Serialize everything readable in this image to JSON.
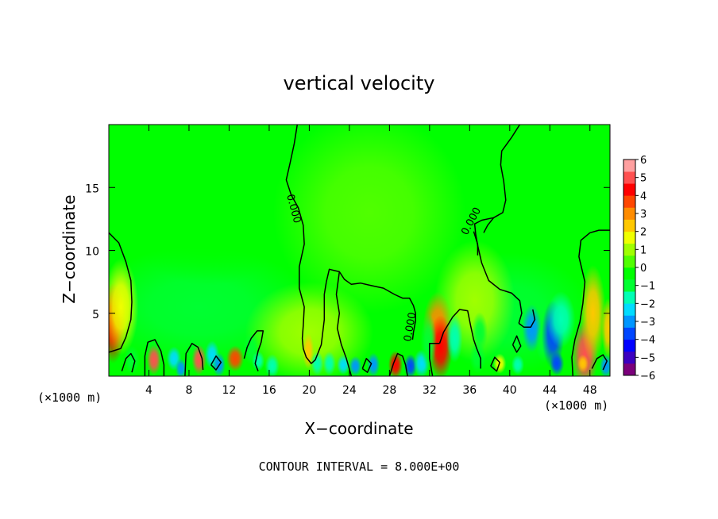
{
  "chart_data": {
    "type": "heatmap",
    "title": "vertical velocity",
    "xlabel": "X−coordinate",
    "ylabel": "Z−coordinate",
    "x_unit_left": "(×1000 m)",
    "x_unit_right": "(×1000 m)",
    "footer": "CONTOUR INTERVAL = 8.000E+00",
    "xlim": [
      0,
      50
    ],
    "ylim": [
      0,
      20
    ],
    "x_ticks": [
      4,
      8,
      12,
      16,
      20,
      24,
      28,
      32,
      36,
      40,
      44,
      48
    ],
    "x_tick_labels": [
      "4",
      "8",
      "12",
      "16",
      "20",
      "24",
      "28",
      "32",
      "36",
      "40",
      "44",
      "48"
    ],
    "y_ticks": [
      5,
      10,
      15
    ],
    "y_tick_labels": [
      "5",
      "10",
      "15"
    ],
    "colorbar": {
      "range": [
        -6,
        6
      ],
      "ticks": [
        6,
        5,
        4,
        3,
        2,
        1,
        0,
        -1,
        -2,
        -3,
        -4,
        -5,
        -6
      ],
      "tick_labels": [
        "6",
        "5",
        "4",
        "3",
        "2",
        "1",
        "0",
        "−1",
        "−2",
        "−3",
        "−4",
        "−5",
        "−6"
      ],
      "colors": [
        "#7b007b",
        "#3c00c0",
        "#0000ff",
        "#0046ff",
        "#0096ff",
        "#00dcff",
        "#00ffb4",
        "#00ff32",
        "#00ff00",
        "#50ff00",
        "#a0ff00",
        "#f0ff00",
        "#ffc800",
        "#ff8c00",
        "#ff4600",
        "#ff0000",
        "#ff5050",
        "#ffa0a0"
      ]
    },
    "contour_labels": [
      "0.000",
      "0.000",
      "0.000"
    ],
    "contours": [
      [
        [
          0,
          11.4
        ],
        [
          1.0,
          10.6
        ],
        [
          1.7,
          9.1
        ],
        [
          2.2,
          7.6
        ],
        [
          2.3,
          5.9
        ],
        [
          2.2,
          4.5
        ],
        [
          1.7,
          3.1
        ],
        [
          1.2,
          2.2
        ],
        [
          0,
          1.9
        ]
      ],
      [
        [
          18.8,
          20
        ],
        [
          18.5,
          18.5
        ],
        [
          18.1,
          17.0
        ],
        [
          17.7,
          15.6
        ],
        [
          18.2,
          14.4
        ],
        [
          18.9,
          13.4
        ],
        [
          19.4,
          12.0
        ],
        [
          19.5,
          10.5
        ],
        [
          19.0,
          8.7
        ],
        [
          19.0,
          7.0
        ],
        [
          19.5,
          5.5
        ],
        [
          19.4,
          4.0
        ],
        [
          19.3,
          3.0
        ],
        [
          19.4,
          2.2
        ],
        [
          19.7,
          1.5
        ],
        [
          20.2,
          1.0
        ],
        [
          20.6,
          1.3
        ],
        [
          21.2,
          2.5
        ],
        [
          21.5,
          4.5
        ],
        [
          21.5,
          6.5
        ],
        [
          21.7,
          7.5
        ]
      ],
      [
        [
          21.7,
          7.5
        ],
        [
          22.0,
          8.5
        ],
        [
          22.5,
          8.4
        ],
        [
          23.0,
          8.3
        ],
        [
          23.5,
          7.7
        ],
        [
          24.2,
          7.3
        ],
        [
          25.1,
          7.4
        ],
        [
          26.2,
          7.2
        ],
        [
          27.4,
          7.0
        ],
        [
          28.5,
          6.5
        ],
        [
          29.3,
          6.2
        ],
        [
          30.0,
          6.2
        ],
        [
          30.4,
          5.6
        ],
        [
          30.6,
          5.0
        ],
        [
          30.6,
          4.4
        ],
        [
          30.4,
          3.5
        ],
        [
          30.3,
          2.9
        ]
      ],
      [
        [
          23.0,
          8.3
        ],
        [
          22.7,
          6.5
        ],
        [
          23.0,
          5.0
        ],
        [
          22.8,
          3.8
        ],
        [
          23.2,
          2.5
        ],
        [
          23.7,
          1.4
        ],
        [
          24.2,
          0
        ]
      ],
      [
        [
          28.0,
          0
        ],
        [
          28.4,
          1.0
        ],
        [
          28.8,
          1.8
        ],
        [
          29.3,
          1.6
        ],
        [
          29.6,
          0.9
        ],
        [
          29.8,
          0
        ]
      ],
      [
        [
          41.0,
          20
        ],
        [
          40.2,
          19.0
        ],
        [
          39.2,
          17.9
        ],
        [
          39.1,
          16.8
        ],
        [
          39.4,
          15.5
        ],
        [
          39.6,
          14.0
        ],
        [
          39.3,
          13.0
        ],
        [
          38.4,
          12.6
        ],
        [
          37.2,
          12.4
        ],
        [
          36.5,
          12.1
        ],
        [
          36.6,
          11.3
        ],
        [
          36.8,
          10.4
        ],
        [
          37.2,
          9.0
        ],
        [
          37.9,
          7.6
        ],
        [
          39.0,
          6.9
        ],
        [
          40.2,
          6.6
        ],
        [
          41.0,
          6.0
        ],
        [
          41.2,
          5.0
        ],
        [
          40.9,
          4.2
        ]
      ],
      [
        [
          36.4,
          11.5
        ],
        [
          36.8,
          10.5
        ],
        [
          36.8,
          9.6
        ]
      ],
      [
        [
          38.4,
          12.6
        ],
        [
          37.8,
          12.0
        ],
        [
          37.4,
          11.4
        ]
      ],
      [
        [
          40.9,
          4.2
        ],
        [
          41.4,
          3.9
        ],
        [
          42.1,
          3.9
        ],
        [
          42.5,
          4.5
        ],
        [
          42.3,
          5.3
        ]
      ],
      [
        [
          33.0,
          2.6
        ],
        [
          33.4,
          3.5
        ],
        [
          34.3,
          4.7
        ],
        [
          35.0,
          5.3
        ],
        [
          35.8,
          5.2
        ],
        [
          36.1,
          4.0
        ],
        [
          36.4,
          2.9
        ],
        [
          36.7,
          2.2
        ],
        [
          37.1,
          1.4
        ],
        [
          37.1,
          0.6
        ]
      ],
      [
        [
          32.3,
          0
        ],
        [
          32.0,
          1.4
        ],
        [
          32.0,
          2.6
        ],
        [
          33.0,
          2.6
        ]
      ],
      [
        [
          13.5,
          1.4
        ],
        [
          13.8,
          2.3
        ],
        [
          14.2,
          3.0
        ],
        [
          14.8,
          3.6
        ],
        [
          15.4,
          3.6
        ],
        [
          15.2,
          2.7
        ],
        [
          14.9,
          2.0
        ],
        [
          14.6,
          1.0
        ],
        [
          14.9,
          0.4
        ]
      ],
      [
        [
          3.6,
          0
        ],
        [
          3.6,
          1.6
        ],
        [
          3.9,
          2.7
        ],
        [
          4.6,
          2.9
        ],
        [
          5.2,
          2.0
        ],
        [
          5.5,
          0.9
        ],
        [
          5.5,
          0
        ]
      ],
      [
        [
          7.6,
          0
        ],
        [
          7.7,
          1.8
        ],
        [
          8.3,
          2.6
        ],
        [
          8.9,
          2.3
        ],
        [
          9.3,
          1.4
        ],
        [
          9.4,
          0.5
        ]
      ],
      [
        [
          46.3,
          0
        ],
        [
          46.2,
          1.5
        ],
        [
          46.5,
          2.9
        ],
        [
          47.0,
          4.3
        ],
        [
          47.3,
          5.8
        ],
        [
          47.5,
          7.5
        ],
        [
          46.9,
          9.5
        ],
        [
          47.1,
          10.8
        ],
        [
          48.0,
          11.4
        ],
        [
          48.9,
          11.6
        ],
        [
          50,
          11.6
        ]
      ],
      [
        [
          40.3,
          2.5
        ],
        [
          40.7,
          3.2
        ],
        [
          41.1,
          2.4
        ],
        [
          40.7,
          1.9
        ],
        [
          40.3,
          2.5
        ]
      ],
      [
        [
          1.3,
          0.4
        ],
        [
          1.7,
          1.4
        ],
        [
          2.2,
          1.8
        ],
        [
          2.6,
          1.2
        ],
        [
          2.3,
          0.3
        ]
      ],
      [
        [
          10.2,
          0.9
        ],
        [
          10.7,
          1.6
        ],
        [
          11.2,
          1.1
        ],
        [
          10.7,
          0.5
        ],
        [
          10.2,
          0.9
        ]
      ],
      [
        [
          25.3,
          0.6
        ],
        [
          25.7,
          1.4
        ],
        [
          26.2,
          1.0
        ],
        [
          25.8,
          0.3
        ],
        [
          25.3,
          0.6
        ]
      ],
      [
        [
          38.1,
          0.8
        ],
        [
          38.5,
          1.5
        ],
        [
          39.0,
          1.1
        ],
        [
          38.7,
          0.4
        ],
        [
          38.1,
          0.8
        ]
      ],
      [
        [
          48.2,
          0.6
        ],
        [
          48.7,
          1.4
        ],
        [
          49.3,
          1.7
        ],
        [
          49.7,
          1.2
        ],
        [
          49.3,
          0.5
        ]
      ]
    ],
    "cells": [
      {
        "x": 0.4,
        "z": 4.2,
        "sx": 0.8,
        "sz": 2.0,
        "v": 4.0
      },
      {
        "x": 1.2,
        "z": 5.5,
        "sx": 1.1,
        "sz": 2.4,
        "v": 1.8
      },
      {
        "x": 2.3,
        "z": 1.3,
        "sx": 0.5,
        "sz": 0.7,
        "v": -1.2
      },
      {
        "x": 4.5,
        "z": 1.3,
        "sx": 0.45,
        "sz": 0.75,
        "v": 5.0
      },
      {
        "x": 6.5,
        "z": 1.4,
        "sx": 0.45,
        "sz": 0.6,
        "v": -2.5
      },
      {
        "x": 7.2,
        "z": 0.6,
        "sx": 0.35,
        "sz": 0.5,
        "v": -3.0
      },
      {
        "x": 9.0,
        "z": 1.3,
        "sx": 0.45,
        "sz": 0.75,
        "v": 4.8
      },
      {
        "x": 10.3,
        "z": 1.7,
        "sx": 0.45,
        "sz": 0.7,
        "v": -2.5
      },
      {
        "x": 11.0,
        "z": 0.9,
        "sx": 0.4,
        "sz": 0.6,
        "v": -3.0
      },
      {
        "x": 12.6,
        "z": 1.4,
        "sx": 0.55,
        "sz": 0.65,
        "v": 3.5
      },
      {
        "x": 14.2,
        "z": 2.2,
        "sx": 0.5,
        "sz": 0.8,
        "v": -1.0
      },
      {
        "x": 14.9,
        "z": 1.2,
        "sx": 0.4,
        "sz": 0.5,
        "v": -2.0
      },
      {
        "x": 16.3,
        "z": 0.8,
        "sx": 0.45,
        "sz": 0.6,
        "v": -1.5
      },
      {
        "x": 19.9,
        "z": 2.0,
        "sx": 0.35,
        "sz": 0.9,
        "v": 2.0
      },
      {
        "x": 20.8,
        "z": 1.0,
        "sx": 0.4,
        "sz": 0.6,
        "v": -1.5
      },
      {
        "x": 22.0,
        "z": 1.0,
        "sx": 0.4,
        "sz": 0.6,
        "v": -1.8
      },
      {
        "x": 23.4,
        "z": 0.9,
        "sx": 0.4,
        "sz": 0.5,
        "v": -2.6
      },
      {
        "x": 24.6,
        "z": 0.8,
        "sx": 0.4,
        "sz": 0.5,
        "v": -3.2
      },
      {
        "x": 26.4,
        "z": 0.9,
        "sx": 0.4,
        "sz": 0.6,
        "v": -2.8
      },
      {
        "x": 28.6,
        "z": 0.9,
        "sx": 0.45,
        "sz": 0.7,
        "v": 4.5
      },
      {
        "x": 30.1,
        "z": 0.8,
        "sx": 0.4,
        "sz": 0.6,
        "v": -3.8
      },
      {
        "x": 31.2,
        "z": 1.0,
        "sx": 0.5,
        "sz": 0.7,
        "v": -2.5
      },
      {
        "x": 32.8,
        "z": 4.0,
        "sx": 0.9,
        "sz": 1.7,
        "v": 3.0
      },
      {
        "x": 33.1,
        "z": 2.3,
        "sx": 0.75,
        "sz": 1.6,
        "v": 4.6
      },
      {
        "x": 31.9,
        "z": 2.8,
        "sx": 0.5,
        "sz": 1.4,
        "v": -1.3
      },
      {
        "x": 34.5,
        "z": 3.0,
        "sx": 0.5,
        "sz": 1.2,
        "v": -1.6
      },
      {
        "x": 36.8,
        "z": 1.5,
        "sx": 0.5,
        "sz": 0.8,
        "v": -1.2
      },
      {
        "x": 37.0,
        "z": 3.5,
        "sx": 0.5,
        "sz": 1.0,
        "v": -1.0
      },
      {
        "x": 39.0,
        "z": 1.0,
        "sx": 0.4,
        "sz": 0.5,
        "v": 1.8
      },
      {
        "x": 40.8,
        "z": 0.9,
        "sx": 0.4,
        "sz": 0.5,
        "v": -1.4
      },
      {
        "x": 42.2,
        "z": 3.8,
        "sx": 0.6,
        "sz": 1.2,
        "v": -3.0
      },
      {
        "x": 43.4,
        "z": 2.7,
        "sx": 0.5,
        "sz": 1.0,
        "v": -1.2
      },
      {
        "x": 44.3,
        "z": 3.3,
        "sx": 0.7,
        "sz": 1.7,
        "v": -3.5
      },
      {
        "x": 45.1,
        "z": 4.5,
        "sx": 0.9,
        "sz": 1.4,
        "v": -2.0
      },
      {
        "x": 44.7,
        "z": 1.0,
        "sx": 0.45,
        "sz": 0.6,
        "v": -3.4
      },
      {
        "x": 47.5,
        "z": 1.7,
        "sx": 0.8,
        "sz": 1.7,
        "v": 5.0
      },
      {
        "x": 47.3,
        "z": 1.0,
        "sx": 0.35,
        "sz": 0.45,
        "v": 2.2
      },
      {
        "x": 48.3,
        "z": 5.0,
        "sx": 0.8,
        "sz": 2.4,
        "v": 2.0
      },
      {
        "x": 49.6,
        "z": 0.8,
        "sx": 0.4,
        "sz": 0.6,
        "v": -3.0
      },
      {
        "x": 49.8,
        "z": 3.8,
        "sx": 0.4,
        "sz": 1.5,
        "v": 2.5
      }
    ],
    "broad": [
      {
        "x": 9,
        "z": 5.5,
        "sx": 7,
        "sz": 3,
        "v": -0.9
      },
      {
        "x": 28,
        "z": 4.5,
        "sx": 4,
        "sz": 3,
        "v": -0.6
      },
      {
        "x": 40,
        "z": 5,
        "sx": 5,
        "sz": 3,
        "v": -0.8
      },
      {
        "x": 10,
        "z": 12,
        "sx": 5,
        "sz": 3,
        "v": -0.5
      },
      {
        "x": 20,
        "z": 3.5,
        "sx": 4,
        "sz": 2.5,
        "v": 0.7
      },
      {
        "x": 26,
        "z": 13,
        "sx": 6,
        "sz": 5,
        "v": 0.35
      },
      {
        "x": 36.5,
        "z": 6,
        "sx": 2.5,
        "sz": 3,
        "v": 0.8
      }
    ]
  }
}
